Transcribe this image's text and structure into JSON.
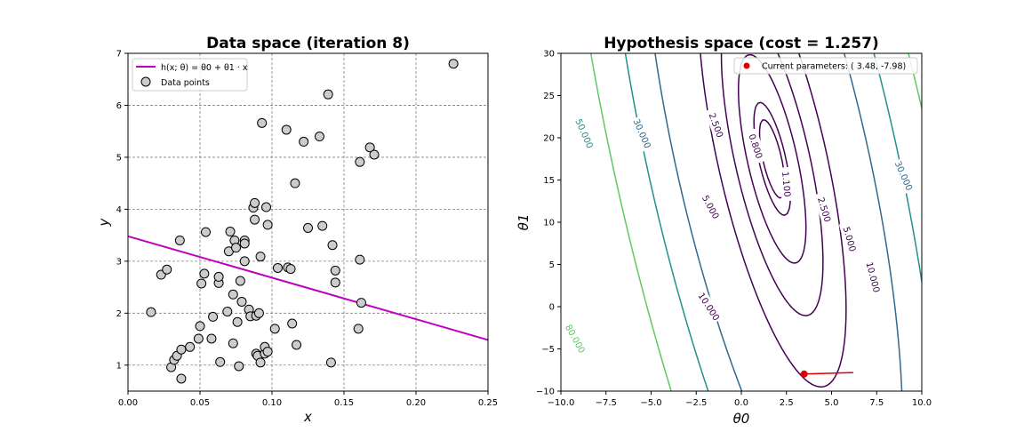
{
  "colors": {
    "line": "#bf00bf",
    "marker_face": "#cccccc",
    "marker_edge": "#000000",
    "current_point": "#e00000",
    "grid": "#808080"
  },
  "chart_data": [
    {
      "type": "scatter",
      "title": "Data space (iteration 8)",
      "xlabel": "x",
      "ylabel": "y",
      "xlim": [
        0.0,
        0.25
      ],
      "ylim": [
        0.5,
        7.0
      ],
      "grid": true,
      "xticks": [
        0.0,
        0.05,
        0.1,
        0.15,
        0.2,
        0.25
      ],
      "xtick_labels": [
        "0.00",
        "0.05",
        "0.10",
        "0.15",
        "0.20",
        "0.25"
      ],
      "yticks": [
        1,
        2,
        3,
        4,
        5,
        6,
        7
      ],
      "ytick_labels": [
        "1",
        "2",
        "3",
        "4",
        "5",
        "6",
        "7"
      ],
      "legend": {
        "placement": "top-left",
        "entries": [
          "h(x; θ) = θ0 + θ1 · x",
          "Data points"
        ]
      },
      "line": {
        "name": "h(x; θ) = θ0 + θ1 · x",
        "theta0": 3.48,
        "theta1": -7.98
      },
      "points": [
        [
          0.016,
          2.02
        ],
        [
          0.023,
          2.74
        ],
        [
          0.027,
          2.84
        ],
        [
          0.03,
          0.96
        ],
        [
          0.032,
          1.1
        ],
        [
          0.034,
          1.18
        ],
        [
          0.036,
          3.4
        ],
        [
          0.037,
          1.3
        ],
        [
          0.037,
          0.74
        ],
        [
          0.043,
          1.35
        ],
        [
          0.049,
          1.51
        ],
        [
          0.05,
          1.75
        ],
        [
          0.051,
          2.57
        ],
        [
          0.053,
          2.76
        ],
        [
          0.054,
          3.56
        ],
        [
          0.058,
          1.51
        ],
        [
          0.059,
          1.93
        ],
        [
          0.063,
          2.58
        ],
        [
          0.063,
          2.7
        ],
        [
          0.064,
          1.06
        ],
        [
          0.069,
          2.03
        ],
        [
          0.07,
          3.19
        ],
        [
          0.071,
          3.57
        ],
        [
          0.073,
          1.42
        ],
        [
          0.073,
          2.36
        ],
        [
          0.074,
          3.4
        ],
        [
          0.075,
          3.26
        ],
        [
          0.076,
          1.83
        ],
        [
          0.077,
          0.98
        ],
        [
          0.078,
          2.62
        ],
        [
          0.079,
          2.22
        ],
        [
          0.081,
          3.0
        ],
        [
          0.081,
          3.4
        ],
        [
          0.081,
          3.34
        ],
        [
          0.084,
          2.07
        ],
        [
          0.085,
          1.94
        ],
        [
          0.087,
          4.03
        ],
        [
          0.088,
          4.12
        ],
        [
          0.088,
          3.8
        ],
        [
          0.089,
          1.95
        ],
        [
          0.089,
          1.22
        ],
        [
          0.09,
          1.18
        ],
        [
          0.091,
          2.0
        ],
        [
          0.092,
          3.09
        ],
        [
          0.092,
          1.05
        ],
        [
          0.093,
          5.66
        ],
        [
          0.095,
          1.22
        ],
        [
          0.095,
          1.35
        ],
        [
          0.096,
          4.04
        ],
        [
          0.097,
          1.26
        ],
        [
          0.097,
          3.7
        ],
        [
          0.102,
          1.7
        ],
        [
          0.104,
          2.87
        ],
        [
          0.11,
          5.53
        ],
        [
          0.111,
          2.88
        ],
        [
          0.113,
          2.85
        ],
        [
          0.114,
          1.8
        ],
        [
          0.116,
          4.5
        ],
        [
          0.117,
          1.39
        ],
        [
          0.122,
          5.3
        ],
        [
          0.125,
          3.64
        ],
        [
          0.133,
          5.4
        ],
        [
          0.135,
          3.68
        ],
        [
          0.139,
          6.21
        ],
        [
          0.141,
          1.05
        ],
        [
          0.142,
          3.31
        ],
        [
          0.144,
          2.82
        ],
        [
          0.144,
          2.59
        ],
        [
          0.16,
          1.7
        ],
        [
          0.161,
          4.91
        ],
        [
          0.161,
          3.03
        ],
        [
          0.162,
          2.2
        ],
        [
          0.168,
          5.19
        ],
        [
          0.171,
          5.05
        ],
        [
          0.226,
          6.8
        ]
      ]
    },
    {
      "type": "contour",
      "title": "Hypothesis space (cost =  1.257)",
      "xlabel": "θ0",
      "ylabel": "θ1",
      "xlim": [
        -10.0,
        10.0
      ],
      "ylim": [
        -10,
        30
      ],
      "grid": false,
      "xticks": [
        -10.0,
        -7.5,
        -5.0,
        -2.5,
        0.0,
        2.5,
        5.0,
        7.5,
        10.0
      ],
      "xtick_labels": [
        "−10.0",
        "−7.5",
        "−5.0",
        "−2.5",
        "0.0",
        "2.5",
        "5.0",
        "7.5",
        "10.0"
      ],
      "yticks": [
        -10,
        -5,
        0,
        5,
        10,
        15,
        20,
        25,
        30
      ],
      "ytick_labels": [
        "−10",
        "−5",
        "0",
        "5",
        "10",
        "15",
        "20",
        "25",
        "30"
      ],
      "cost_model": {
        "center": [
          1.71,
          17.5
        ],
        "a": 1.0,
        "b": 0.2,
        "c": 0.023,
        "offset": 0.52
      },
      "contour_levels": [
        {
          "value": 0.8,
          "label": "0.800",
          "color": "#440154"
        },
        {
          "value": 1.1,
          "label": "1.100",
          "color": "#440154"
        },
        {
          "value": 2.5,
          "label": "2.500",
          "color": "#440154"
        },
        {
          "value": 5.0,
          "label": "5.000",
          "color": "#440154"
        },
        {
          "value": 10.0,
          "label": "10.000",
          "color": "#440154"
        },
        {
          "value": 30.0,
          "label": "30.000",
          "color": "#31688e"
        },
        {
          "value": 50.0,
          "label": "50.000",
          "color": "#21918c"
        },
        {
          "value": 80.0,
          "label": "80.000",
          "color": "#5ec962"
        }
      ],
      "contour_labels": [
        {
          "label": "0.800",
          "theta0": 0.8,
          "theta1": 19.0,
          "color": "#440154"
        },
        {
          "label": "1.100",
          "theta0": 2.5,
          "theta1": 14.5,
          "color": "#440154"
        },
        {
          "label": "2.500",
          "theta0": -1.4,
          "theta1": 21.5,
          "color": "#440154"
        },
        {
          "label": "2.500",
          "theta0": 4.6,
          "theta1": 11.5,
          "color": "#440154"
        },
        {
          "label": "5.000",
          "theta0": -1.7,
          "theta1": 11.8,
          "color": "#440154"
        },
        {
          "label": "5.000",
          "theta0": 6.0,
          "theta1": 8.0,
          "color": "#440154"
        },
        {
          "label": "10.000",
          "theta0": -1.8,
          "theta1": 0.0,
          "color": "#440154"
        },
        {
          "label": "10.000",
          "theta0": 7.3,
          "theta1": 3.5,
          "color": "#440154"
        },
        {
          "label": "30.000",
          "theta0": -5.5,
          "theta1": 20.5,
          "color": "#31688e"
        },
        {
          "label": "30.000",
          "theta0": 9.0,
          "theta1": 15.5,
          "color": "#31688e"
        },
        {
          "label": "50.000",
          "theta0": -8.7,
          "theta1": 20.5,
          "color": "#21918c"
        },
        {
          "label": "80.000",
          "theta0": -9.2,
          "theta1": -3.8,
          "color": "#5ec962"
        }
      ],
      "current_parameters": {
        "theta0": 3.48,
        "theta1": -7.98
      },
      "step_trail": [
        [
          6.2,
          -7.8
        ],
        [
          3.48,
          -7.98
        ]
      ],
      "legend": {
        "placement": "top-right",
        "entries": [
          "Current parameters: ( 3.48, -7.98)"
        ]
      }
    }
  ]
}
